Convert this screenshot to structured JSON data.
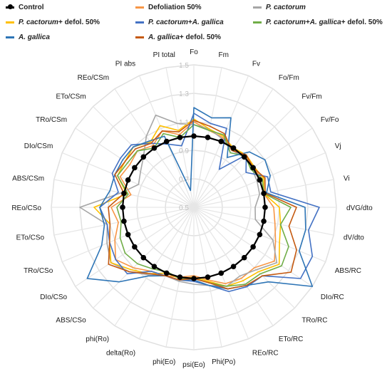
{
  "chart_data": {
    "type": "radar",
    "axes": [
      "Fo",
      "Fm",
      "Fv",
      "Fo/Fm",
      "Fv/Fm",
      "Fv/Fo",
      "Vj",
      "Vi",
      "dVG/dto",
      "dV/dto",
      "ABS/RC",
      "DIo/RC",
      "TRo/RC",
      "ETo/RC",
      "REo/RC",
      "Phi(Po)",
      "psi(Eo)",
      "phi(Eo)",
      "delta(Ro)",
      "phi(Ro)",
      "ABS/CSo",
      "DIo/CSo",
      "TRo/CSo",
      "ETo/CSo",
      "REo/CSo",
      "ABS/CSm",
      "DIo/CSm",
      "TRo/CSm",
      "ETo/CSm",
      "REo/CSm",
      "PI abs",
      "PI total"
    ],
    "rlim": [
      0.5,
      1.5
    ],
    "rticks": [
      "0.5",
      "0.7",
      "0.9",
      "1.1",
      "1.3",
      "1.5"
    ],
    "grid": true,
    "legend_position": "top",
    "series": [
      {
        "name": "Control",
        "color": "#000000",
        "markers": true,
        "values": [
          1,
          1,
          1,
          1,
          1,
          1,
          1,
          1,
          1,
          1,
          1,
          1,
          1,
          1,
          1,
          1,
          1,
          1,
          1,
          1,
          1,
          1,
          1,
          1,
          1,
          1,
          1,
          1,
          1,
          1,
          1,
          1
        ]
      },
      {
        "name": "Defoliation 50%",
        "color": "#f79646",
        "values": [
          1.1,
          1.05,
          1.03,
          0.99,
          1.01,
          1.0,
          1.02,
          1.0,
          1.06,
          1.08,
          1.12,
          1.18,
          1.1,
          1.1,
          1.08,
          1.02,
          0.98,
          1.0,
          1.02,
          1.04,
          1.1,
          1.16,
          1.1,
          1.04,
          1.08,
          0.95,
          1.06,
          1.04,
          1.06,
          1.02,
          1.08,
          1.02
        ]
      },
      {
        "name": "P. cactorum",
        "color": "#a6a6a6",
        "values": [
          1.08,
          1.06,
          1.02,
          0.98,
          1.0,
          0.99,
          0.98,
          0.97,
          0.93,
          0.94,
          1.1,
          1.2,
          1.12,
          1.08,
          1.1,
          1.06,
          1.04,
          1.03,
          1.02,
          1.07,
          1.14,
          1.2,
          1.16,
          1.12,
          1.3,
          1.02,
          0.92,
          0.95,
          1.0,
          1.1,
          1.2,
          1.1
        ]
      },
      {
        "name": "P. cactorum + defol. 50%",
        "color": "#ffc000",
        "values": [
          1.12,
          1.06,
          1.04,
          1.0,
          1.02,
          1.01,
          1.03,
          1.0,
          1.1,
          1.12,
          1.15,
          1.22,
          1.14,
          1.12,
          1.1,
          1.03,
          0.99,
          1.01,
          1.0,
          1.06,
          1.12,
          1.2,
          1.14,
          1.1,
          1.2,
          0.98,
          1.08,
          1.08,
          1.1,
          1.05,
          1.12,
          1.05
        ]
      },
      {
        "name": "P. cactorum + A. gallica",
        "color": "#4472c4",
        "values": [
          1.16,
          1.1,
          1.1,
          0.82,
          1.02,
          0.94,
          1.06,
          1.05,
          1.38,
          1.32,
          1.4,
          1.4,
          1.18,
          1.17,
          1.14,
          1.06,
          1.02,
          1.02,
          1.02,
          1.04,
          1.16,
          1.16,
          1.14,
          1.12,
          1.16,
          1.04,
          1.12,
          1.12,
          1.12,
          1.04,
          0.98,
          0.94
        ]
      },
      {
        "name": "P. cactorum + A. gallica + defol. 50%",
        "color": "#70ad47",
        "values": [
          1.08,
          1.05,
          1.05,
          0.96,
          1.01,
          0.98,
          1.02,
          1.0,
          1.18,
          1.12,
          1.22,
          1.24,
          1.16,
          1.15,
          1.1,
          1.04,
          1.0,
          1.01,
          0.99,
          1.02,
          1.06,
          1.08,
          1.06,
          1.02,
          1.04,
          0.97,
          1.08,
          1.06,
          1.06,
          1.0,
          1.06,
          1.0
        ]
      },
      {
        "name": "A. gallica",
        "color": "#2e75b6",
        "values": [
          1.2,
          1.14,
          1.18,
          0.92,
          1.05,
          1.1,
          1.08,
          1.02,
          1.28,
          1.3,
          1.3,
          1.5,
          1.24,
          1.16,
          1.12,
          1.06,
          1.01,
          1.02,
          1.02,
          1.08,
          1.24,
          1.4,
          1.2,
          1.14,
          1.16,
          1.1,
          1.1,
          1.1,
          1.1,
          1.06,
          1.04,
          0.62
        ]
      },
      {
        "name": "A. gallica + defol. 50%",
        "color": "#c55a11",
        "values": [
          1.11,
          1.08,
          1.06,
          0.98,
          1.02,
          1.0,
          1.04,
          1.01,
          1.22,
          1.18,
          1.28,
          1.32,
          1.18,
          1.16,
          1.12,
          1.04,
          1.0,
          1.02,
          1.02,
          1.06,
          1.14,
          1.22,
          1.14,
          1.1,
          1.1,
          1.0,
          1.1,
          1.08,
          1.08,
          1.04,
          1.08,
          1.04
        ]
      }
    ]
  },
  "legend": [
    {
      "parts": [
        {
          "t": "Control",
          "i": false
        }
      ],
      "color": "#000000",
      "marker": true
    },
    {
      "parts": [
        {
          "t": "Defoliation 50%",
          "i": false
        }
      ],
      "color": "#f79646",
      "marker": false
    },
    {
      "parts": [
        {
          "t": "P. cactorum",
          "i": true
        }
      ],
      "color": "#a6a6a6",
      "marker": false
    },
    {
      "parts": [
        {
          "t": "P. cactorum",
          "i": true
        },
        {
          "t": " + defol. 50%",
          "i": false
        }
      ],
      "color": "#ffc000",
      "marker": false
    },
    {
      "parts": [
        {
          "t": "P. cactorum",
          "i": true
        },
        {
          "t": " + ",
          "i": false
        },
        {
          "t": "A. gallica",
          "i": true
        }
      ],
      "color": "#4472c4",
      "marker": false
    },
    {
      "parts": [
        {
          "t": "P. cactorum",
          "i": true
        },
        {
          "t": " + ",
          "i": false
        },
        {
          "t": "A. gallica",
          "i": true
        },
        {
          "t": " + defol. 50%",
          "i": false
        }
      ],
      "color": "#70ad47",
      "marker": false
    },
    {
      "parts": [
        {
          "t": "A. gallica",
          "i": true
        }
      ],
      "color": "#2e75b6",
      "marker": false
    },
    {
      "parts": [
        {
          "t": "A. gallica",
          "i": true
        },
        {
          "t": " + defol. 50%",
          "i": false
        }
      ],
      "color": "#c55a11",
      "marker": false
    }
  ]
}
